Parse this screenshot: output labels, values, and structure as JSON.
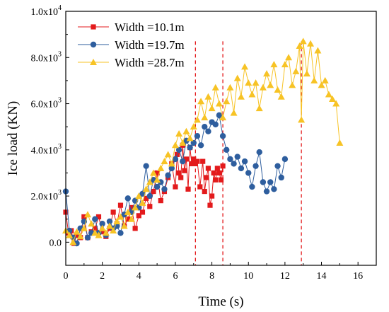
{
  "chart_data": {
    "type": "line",
    "xlabel": "Time (s)",
    "ylabel": "Ice load (KN)",
    "xlim": [
      0,
      17
    ],
    "ylim": [
      -1000,
      10000
    ],
    "x_ticks": [
      0,
      2,
      4,
      6,
      8,
      10,
      12,
      14,
      16
    ],
    "x_tick_labels": [
      "0",
      "2",
      "4",
      "6",
      "8",
      "10",
      "12",
      "14",
      "16"
    ],
    "y_ticks": [
      0,
      2000,
      4000,
      6000,
      8000,
      10000
    ],
    "y_tick_labels": [
      {
        "mantissa": "0.0",
        "exp": ""
      },
      {
        "mantissa": "2.0x10",
        "exp": "3"
      },
      {
        "mantissa": "4.0x10",
        "exp": "3"
      },
      {
        "mantissa": "6.0x10",
        "exp": "3"
      },
      {
        "mantissa": "8.0x10",
        "exp": "3"
      },
      {
        "mantissa": "1.0x10",
        "exp": "4"
      }
    ],
    "legend_position": "top-left",
    "markers": [
      {
        "x": 7.1,
        "y": 8700
      },
      {
        "x": 8.6,
        "y": 8700
      },
      {
        "x": 12.9,
        "y": 8700
      }
    ],
    "series": [
      {
        "name": "Width =10.1m",
        "color": "#e31a1c",
        "marker": "square",
        "x": [
          0,
          0.15,
          0.3,
          0.45,
          0.6,
          0.8,
          1.0,
          1.2,
          1.4,
          1.6,
          1.8,
          2.0,
          2.2,
          2.4,
          2.6,
          2.8,
          3.0,
          3.2,
          3.4,
          3.6,
          3.8,
          4.0,
          4.2,
          4.4,
          4.6,
          4.8,
          5.0,
          5.2,
          5.4,
          5.6,
          5.8,
          6.0,
          6.1,
          6.2,
          6.3,
          6.4,
          6.5,
          6.6,
          6.7,
          6.8,
          6.9,
          7.0,
          7.1,
          7.2,
          7.35,
          7.5,
          7.6,
          7.7,
          7.8,
          7.9,
          8.0,
          8.1,
          8.2,
          8.3,
          8.4,
          8.5,
          8.6
        ],
        "y": [
          1300,
          400,
          500,
          -50,
          300,
          200,
          1100,
          200,
          450,
          600,
          1100,
          450,
          250,
          600,
          1300,
          800,
          1600,
          700,
          1000,
          1500,
          600,
          1150,
          1300,
          1900,
          1550,
          2200,
          3000,
          1800,
          2200,
          2800,
          3400,
          2400,
          3800,
          3000,
          2800,
          4200,
          3100,
          3600,
          2300,
          4100,
          3400,
          3600,
          3400,
          3500,
          2400,
          3500,
          2200,
          2800,
          3200,
          1600,
          2000,
          3000,
          2700,
          3200,
          3000,
          2700,
          3300
        ]
      },
      {
        "name": "Width =19.7m",
        "color": "#2e5e9e",
        "marker": "circle",
        "x": [
          0,
          0.2,
          0.4,
          0.6,
          0.8,
          1.0,
          1.2,
          1.4,
          1.6,
          1.8,
          2.0,
          2.2,
          2.4,
          2.6,
          2.8,
          3.0,
          3.2,
          3.4,
          3.6,
          3.8,
          4.0,
          4.2,
          4.4,
          4.6,
          4.8,
          5.0,
          5.2,
          5.4,
          5.6,
          5.8,
          6.0,
          6.2,
          6.4,
          6.6,
          6.8,
          7.0,
          7.2,
          7.4,
          7.6,
          7.8,
          8.0,
          8.2,
          8.4,
          8.6,
          8.8,
          9.0,
          9.2,
          9.4,
          9.6,
          9.8,
          10.0,
          10.2,
          10.4,
          10.6,
          10.8,
          11.0,
          11.2,
          11.4,
          11.6,
          11.8,
          12.0
        ],
        "y": [
          2200,
          500,
          200,
          -50,
          600,
          900,
          200,
          400,
          1000,
          400,
          800,
          300,
          900,
          600,
          700,
          400,
          1200,
          1900,
          1300,
          1800,
          1500,
          2100,
          3300,
          2000,
          2700,
          2400,
          2600,
          2300,
          2900,
          3200,
          3600,
          4000,
          3500,
          4400,
          4100,
          4300,
          4600,
          4200,
          5000,
          4800,
          5200,
          5100,
          5500,
          4600,
          4000,
          3600,
          3400,
          3700,
          3200,
          3500,
          3000,
          2400,
          3300,
          3900,
          2600,
          2200,
          2600,
          2300,
          3300,
          2800,
          3600
        ]
      },
      {
        "name": "Width =28.7m",
        "color": "#f7c325",
        "marker": "triangle",
        "x": [
          0,
          0.2,
          0.4,
          0.6,
          0.8,
          1.0,
          1.2,
          1.4,
          1.6,
          1.8,
          2.0,
          2.2,
          2.4,
          2.6,
          2.8,
          3.0,
          3.2,
          3.4,
          3.6,
          3.8,
          4.0,
          4.2,
          4.4,
          4.6,
          4.8,
          5.0,
          5.2,
          5.4,
          5.6,
          5.8,
          6.0,
          6.2,
          6.4,
          6.6,
          6.8,
          7.0,
          7.2,
          7.4,
          7.6,
          7.8,
          8.0,
          8.2,
          8.4,
          8.6,
          8.8,
          9.0,
          9.2,
          9.4,
          9.6,
          9.8,
          10.0,
          10.2,
          10.4,
          10.6,
          10.8,
          11.0,
          11.2,
          11.4,
          11.6,
          11.8,
          12.0,
          12.2,
          12.4,
          12.6,
          12.8,
          12.9,
          13.0,
          13.2,
          13.4,
          13.6,
          13.8,
          14.0,
          14.2,
          14.4,
          14.6,
          14.8,
          15.0
        ],
        "y": [
          500,
          300,
          0,
          450,
          250,
          600,
          1200,
          800,
          400,
          300,
          600,
          400,
          700,
          500,
          900,
          1100,
          700,
          1300,
          1000,
          1500,
          2000,
          1700,
          2300,
          2600,
          3000,
          2700,
          3200,
          3500,
          3800,
          3400,
          4200,
          4700,
          4300,
          4800,
          4500,
          5000,
          5300,
          6100,
          5400,
          6300,
          5800,
          6700,
          6000,
          5400,
          6100,
          6700,
          5600,
          7100,
          6300,
          7600,
          6900,
          6400,
          6900,
          5800,
          6700,
          7300,
          6800,
          7700,
          6600,
          6300,
          7700,
          8000,
          6800,
          7400,
          8500,
          5300,
          8700,
          7300,
          8600,
          7000,
          8300,
          6800,
          7000,
          6400,
          6200,
          6000,
          4300
        ]
      }
    ]
  }
}
